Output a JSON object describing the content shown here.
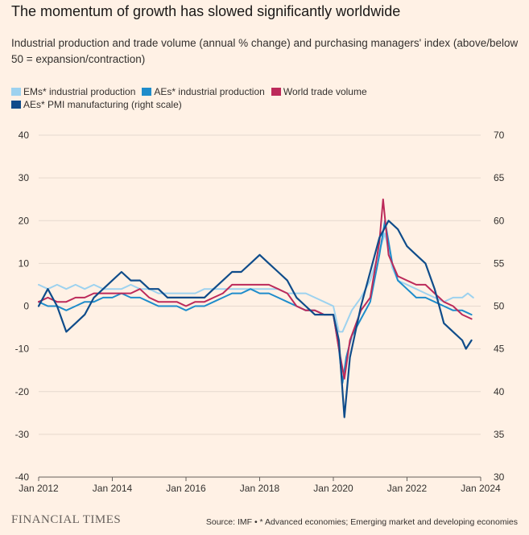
{
  "title": "The momentum of growth has slowed significantly worldwide",
  "subtitle": "Industrial production and trade volume (annual % change) and purchasing managers' index (above/below 50 = expansion/contraction)",
  "footer": {
    "logo": "FINANCIAL TIMES",
    "source": "Source: IMF • * Advanced economies; Emerging market and developing economies"
  },
  "chart_data": {
    "type": "line",
    "x_ticks": [
      "Jan 2012",
      "Jan 2014",
      "Jan 2016",
      "Jan 2018",
      "Jan 2020",
      "Jan 2022",
      "Jan 2024"
    ],
    "y_left": {
      "range": [
        -40,
        40
      ],
      "ticks": [
        "40",
        "30",
        "20",
        "10",
        "0",
        "-10",
        "-20",
        "-30",
        "-40"
      ]
    },
    "y_right": {
      "range": [
        30,
        70
      ],
      "ticks": [
        "70",
        "65",
        "60",
        "55",
        "50",
        "45",
        "40",
        "35",
        "30"
      ]
    },
    "grid": true,
    "legend": "top-left",
    "series": [
      {
        "name": "EMs* industrial production",
        "color": "#9dd2ef",
        "axis": "left",
        "points": [
          [
            2012.0,
            5
          ],
          [
            2012.25,
            4
          ],
          [
            2012.5,
            5
          ],
          [
            2012.75,
            4
          ],
          [
            2013.0,
            5
          ],
          [
            2013.25,
            4
          ],
          [
            2013.5,
            5
          ],
          [
            2013.75,
            4
          ],
          [
            2014.0,
            4
          ],
          [
            2014.25,
            4
          ],
          [
            2014.5,
            5
          ],
          [
            2014.75,
            4
          ],
          [
            2015.0,
            4
          ],
          [
            2015.25,
            3
          ],
          [
            2015.5,
            3
          ],
          [
            2015.75,
            3
          ],
          [
            2016.0,
            3
          ],
          [
            2016.25,
            3
          ],
          [
            2016.5,
            4
          ],
          [
            2016.75,
            4
          ],
          [
            2017.0,
            4
          ],
          [
            2017.25,
            4
          ],
          [
            2017.5,
            4
          ],
          [
            2017.75,
            4
          ],
          [
            2018.0,
            4
          ],
          [
            2018.25,
            4
          ],
          [
            2018.5,
            4
          ],
          [
            2018.75,
            3
          ],
          [
            2019.0,
            3
          ],
          [
            2019.25,
            3
          ],
          [
            2019.5,
            2
          ],
          [
            2019.75,
            1
          ],
          [
            2020.0,
            0
          ],
          [
            2020.15,
            -6
          ],
          [
            2020.25,
            -6
          ],
          [
            2020.35,
            -4
          ],
          [
            2020.5,
            -1
          ],
          [
            2020.75,
            2
          ],
          [
            2021.0,
            6
          ],
          [
            2021.25,
            13
          ],
          [
            2021.4,
            17
          ],
          [
            2021.6,
            9
          ],
          [
            2021.75,
            6
          ],
          [
            2022.0,
            5
          ],
          [
            2022.25,
            4
          ],
          [
            2022.5,
            3
          ],
          [
            2022.75,
            2
          ],
          [
            2023.0,
            1
          ],
          [
            2023.25,
            2
          ],
          [
            2023.5,
            2
          ],
          [
            2023.65,
            3
          ],
          [
            2023.8,
            2
          ]
        ]
      },
      {
        "name": "AEs* industrial production",
        "color": "#1e8ccb",
        "axis": "left",
        "points": [
          [
            2012.0,
            1
          ],
          [
            2012.25,
            0
          ],
          [
            2012.5,
            0
          ],
          [
            2012.75,
            -1
          ],
          [
            2013.0,
            0
          ],
          [
            2013.25,
            1
          ],
          [
            2013.5,
            1
          ],
          [
            2013.75,
            2
          ],
          [
            2014.0,
            2
          ],
          [
            2014.25,
            3
          ],
          [
            2014.5,
            2
          ],
          [
            2014.75,
            2
          ],
          [
            2015.0,
            1
          ],
          [
            2015.25,
            0
          ],
          [
            2015.5,
            0
          ],
          [
            2015.75,
            0
          ],
          [
            2016.0,
            -1
          ],
          [
            2016.25,
            0
          ],
          [
            2016.5,
            0
          ],
          [
            2016.75,
            1
          ],
          [
            2017.0,
            2
          ],
          [
            2017.25,
            3
          ],
          [
            2017.5,
            3
          ],
          [
            2017.75,
            4
          ],
          [
            2018.0,
            3
          ],
          [
            2018.25,
            3
          ],
          [
            2018.5,
            2
          ],
          [
            2018.75,
            1
          ],
          [
            2019.0,
            0
          ],
          [
            2019.25,
            -1
          ],
          [
            2019.5,
            -1
          ],
          [
            2019.75,
            -2
          ],
          [
            2020.0,
            -2
          ],
          [
            2020.15,
            -10
          ],
          [
            2020.25,
            -18
          ],
          [
            2020.35,
            -12
          ],
          [
            2020.5,
            -7
          ],
          [
            2020.75,
            -3
          ],
          [
            2021.0,
            1
          ],
          [
            2021.25,
            12
          ],
          [
            2021.4,
            20
          ],
          [
            2021.6,
            10
          ],
          [
            2021.75,
            6
          ],
          [
            2022.0,
            4
          ],
          [
            2022.25,
            2
          ],
          [
            2022.5,
            2
          ],
          [
            2022.75,
            1
          ],
          [
            2023.0,
            0
          ],
          [
            2023.25,
            -1
          ],
          [
            2023.5,
            -1
          ],
          [
            2023.75,
            -2
          ]
        ]
      },
      {
        "name": "World trade volume",
        "color": "#bc2a5a",
        "axis": "left",
        "points": [
          [
            2012.0,
            1
          ],
          [
            2012.25,
            2
          ],
          [
            2012.5,
            1
          ],
          [
            2012.75,
            1
          ],
          [
            2013.0,
            2
          ],
          [
            2013.25,
            2
          ],
          [
            2013.5,
            3
          ],
          [
            2013.75,
            3
          ],
          [
            2014.0,
            3
          ],
          [
            2014.25,
            3
          ],
          [
            2014.5,
            3
          ],
          [
            2014.75,
            4
          ],
          [
            2015.0,
            2
          ],
          [
            2015.25,
            1
          ],
          [
            2015.5,
            1
          ],
          [
            2015.75,
            1
          ],
          [
            2016.0,
            0
          ],
          [
            2016.25,
            1
          ],
          [
            2016.5,
            1
          ],
          [
            2016.75,
            2
          ],
          [
            2017.0,
            3
          ],
          [
            2017.25,
            5
          ],
          [
            2017.5,
            5
          ],
          [
            2017.75,
            5
          ],
          [
            2018.0,
            5
          ],
          [
            2018.25,
            5
          ],
          [
            2018.5,
            4
          ],
          [
            2018.75,
            3
          ],
          [
            2019.0,
            0
          ],
          [
            2019.25,
            -1
          ],
          [
            2019.5,
            -1
          ],
          [
            2019.75,
            -2
          ],
          [
            2020.0,
            -2
          ],
          [
            2020.15,
            -10
          ],
          [
            2020.3,
            -17
          ],
          [
            2020.45,
            -8
          ],
          [
            2020.75,
            -1
          ],
          [
            2021.0,
            2
          ],
          [
            2021.25,
            15
          ],
          [
            2021.35,
            25
          ],
          [
            2021.5,
            12
          ],
          [
            2021.75,
            7
          ],
          [
            2022.0,
            6
          ],
          [
            2022.25,
            5
          ],
          [
            2022.5,
            5
          ],
          [
            2022.75,
            3
          ],
          [
            2023.0,
            1
          ],
          [
            2023.25,
            0
          ],
          [
            2023.5,
            -2
          ],
          [
            2023.75,
            -3
          ]
        ]
      },
      {
        "name": "AEs* PMI manufacturing (right scale)",
        "color": "#0f4c8a",
        "axis": "right",
        "points": [
          [
            2012.0,
            50
          ],
          [
            2012.25,
            52
          ],
          [
            2012.5,
            50
          ],
          [
            2012.75,
            47
          ],
          [
            2013.0,
            48
          ],
          [
            2013.25,
            49
          ],
          [
            2013.5,
            51
          ],
          [
            2013.75,
            52
          ],
          [
            2014.0,
            53
          ],
          [
            2014.25,
            54
          ],
          [
            2014.5,
            53
          ],
          [
            2014.75,
            53
          ],
          [
            2015.0,
            52
          ],
          [
            2015.25,
            52
          ],
          [
            2015.5,
            51
          ],
          [
            2015.75,
            51
          ],
          [
            2016.0,
            51
          ],
          [
            2016.25,
            51
          ],
          [
            2016.5,
            51
          ],
          [
            2016.75,
            52
          ],
          [
            2017.0,
            53
          ],
          [
            2017.25,
            54
          ],
          [
            2017.5,
            54
          ],
          [
            2017.75,
            55
          ],
          [
            2018.0,
            56
          ],
          [
            2018.25,
            55
          ],
          [
            2018.5,
            54
          ],
          [
            2018.75,
            53
          ],
          [
            2019.0,
            51
          ],
          [
            2019.25,
            50
          ],
          [
            2019.5,
            49
          ],
          [
            2019.75,
            49
          ],
          [
            2020.0,
            49
          ],
          [
            2020.15,
            46
          ],
          [
            2020.3,
            37
          ],
          [
            2020.45,
            44
          ],
          [
            2020.75,
            50
          ],
          [
            2021.0,
            54
          ],
          [
            2021.25,
            58
          ],
          [
            2021.5,
            60
          ],
          [
            2021.75,
            59
          ],
          [
            2022.0,
            57
          ],
          [
            2022.25,
            56
          ],
          [
            2022.5,
            55
          ],
          [
            2022.75,
            52
          ],
          [
            2023.0,
            48
          ],
          [
            2023.25,
            47
          ],
          [
            2023.5,
            46
          ],
          [
            2023.6,
            45
          ],
          [
            2023.75,
            46
          ]
        ]
      }
    ]
  }
}
